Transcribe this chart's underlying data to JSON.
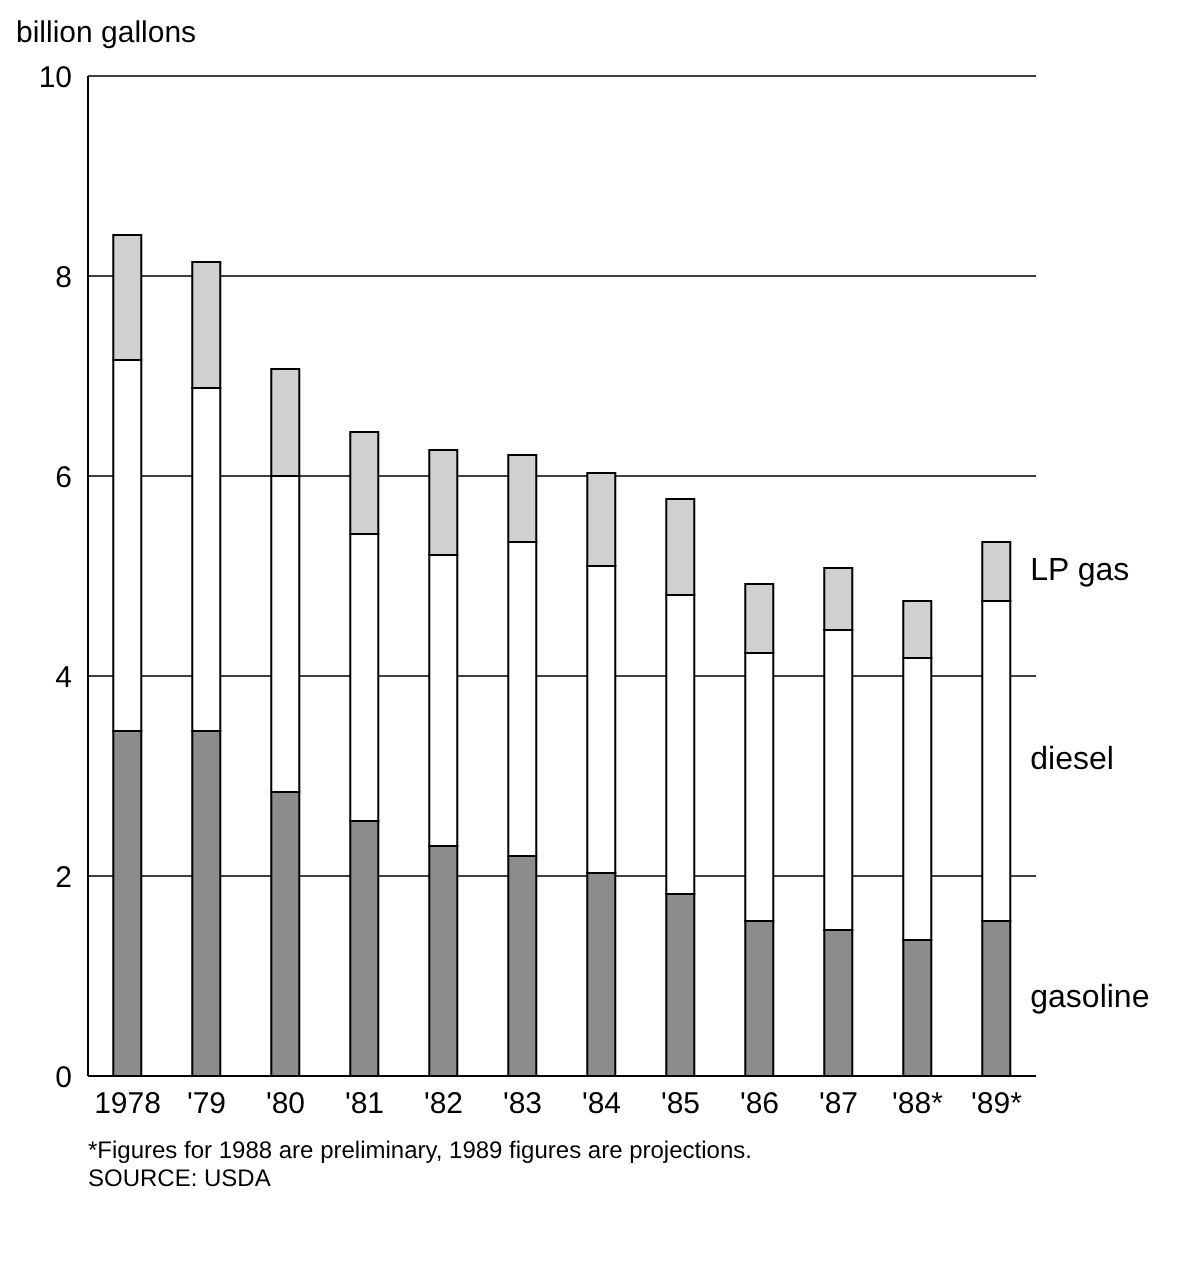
{
  "chart_data": {
    "type": "bar",
    "stacked": true,
    "ylabel": "billion gallons",
    "categories": [
      "1978",
      "'79",
      "'80",
      "'81",
      "'82",
      "'83",
      "'84",
      "'85",
      "'86",
      "'87",
      "'88*",
      "'89*"
    ],
    "series": [
      {
        "name": "gasoline",
        "color": "#8c8c8c",
        "values": [
          3.45,
          3.45,
          2.84,
          2.55,
          2.3,
          2.2,
          2.03,
          1.82,
          1.55,
          1.46,
          1.36,
          1.55
        ]
      },
      {
        "name": "diesel",
        "color": "#ffffff",
        "values": [
          3.71,
          3.43,
          3.16,
          2.87,
          2.91,
          3.14,
          3.07,
          2.99,
          2.68,
          3.0,
          2.82,
          3.2
        ]
      },
      {
        "name": "LP gas",
        "color": "#d0d0d0",
        "values": [
          1.25,
          1.26,
          1.07,
          1.02,
          1.05,
          0.87,
          0.93,
          0.96,
          0.69,
          0.62,
          0.57,
          0.59
        ]
      }
    ],
    "ylim": [
      0,
      10
    ],
    "yticks": [
      0,
      2,
      4,
      6,
      8,
      10
    ],
    "grid": "y",
    "legend": false,
    "annotations": [
      "*Figures for 1988 are preliminary, 1989 figures are projections.",
      "SOURCE: USDA"
    ]
  }
}
